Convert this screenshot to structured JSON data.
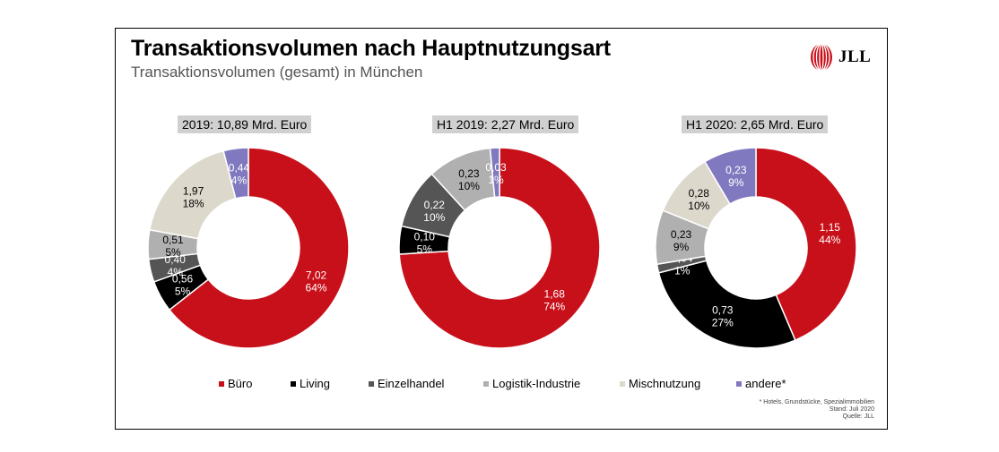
{
  "title": "Transaktionsvolumen nach Hauptnutzungsart",
  "subtitle": "Transaktionsvolumen (gesamt) in München",
  "logo_text": "JLL",
  "colors": {
    "Büro": "#c8101a",
    "Living": "#000000",
    "Einzelhandel": "#555555",
    "Logistik-Industrie": "#b0b0b0",
    "Mischnutzung": "#ddd8cc",
    "andere*": "#8079bf"
  },
  "legend": [
    {
      "label": "Büro",
      "color": "#c8101a"
    },
    {
      "label": "Living",
      "color": "#000000"
    },
    {
      "label": "Einzelhandel",
      "color": "#555555"
    },
    {
      "label": "Logistik-Industrie",
      "color": "#b0b0b0"
    },
    {
      "label": "Mischnutzung",
      "color": "#ddd8cc"
    },
    {
      "label": "andere*",
      "color": "#8079bf"
    }
  ],
  "footnote": [
    "* Hotels, Grundstücke, Spezialimmobilien",
    "Stand: Juli 2020",
    "Quelle: JLL"
  ],
  "chart_data": [
    {
      "type": "pie",
      "title": "2019: 10,89 Mrd. Euro",
      "slices": [
        {
          "category": "Büro",
          "value": "7,02",
          "percent": "64%",
          "share": 64.4
        },
        {
          "category": "Living",
          "value": "0,56",
          "percent": "5%",
          "share": 5.1
        },
        {
          "category": "Einzelhandel",
          "value": "0,40",
          "percent": "4%",
          "share": 3.7
        },
        {
          "category": "Logistik-Industrie",
          "value": "0,51",
          "percent": "5%",
          "share": 4.7
        },
        {
          "category": "Mischnutzung",
          "value": "1,97",
          "percent": "18%",
          "share": 18.1
        },
        {
          "category": "andere*",
          "value": "0,44",
          "percent": "4%",
          "share": 4.0
        }
      ]
    },
    {
      "type": "pie",
      "title": "H1 2019: 2,27 Mrd. Euro",
      "slices": [
        {
          "category": "Büro",
          "value": "1,68",
          "percent": "74%",
          "share": 74.0
        },
        {
          "category": "Living",
          "value": "0,10",
          "percent": "5%",
          "share": 4.5
        },
        {
          "category": "Einzelhandel",
          "value": "0,22",
          "percent": "10%",
          "share": 9.7
        },
        {
          "category": "Logistik-Industrie",
          "value": "0,23",
          "percent": "10%",
          "share": 10.3
        },
        {
          "category": "Mischnutzung",
          "value": "",
          "percent": "",
          "share": 0.0
        },
        {
          "category": "andere*",
          "value": "0,03",
          "percent": "1%",
          "share": 1.5
        }
      ]
    },
    {
      "type": "pie",
      "title": "H1 2020: 2,65 Mrd. Euro",
      "slices": [
        {
          "category": "Büro",
          "value": "1,15",
          "percent": "44%",
          "share": 43.6
        },
        {
          "category": "Living",
          "value": "0,73",
          "percent": "27%",
          "share": 27.4
        },
        {
          "category": "Einzelhandel",
          "value": "0,04",
          "percent": "1%",
          "share": 1.4
        },
        {
          "category": "Logistik-Industrie",
          "value": "0,23",
          "percent": "9%",
          "share": 8.7
        },
        {
          "category": "Mischnutzung",
          "value": "0,28",
          "percent": "10%",
          "share": 10.4
        },
        {
          "category": "andere*",
          "value": "0,23",
          "percent": "9%",
          "share": 8.5
        }
      ]
    }
  ]
}
